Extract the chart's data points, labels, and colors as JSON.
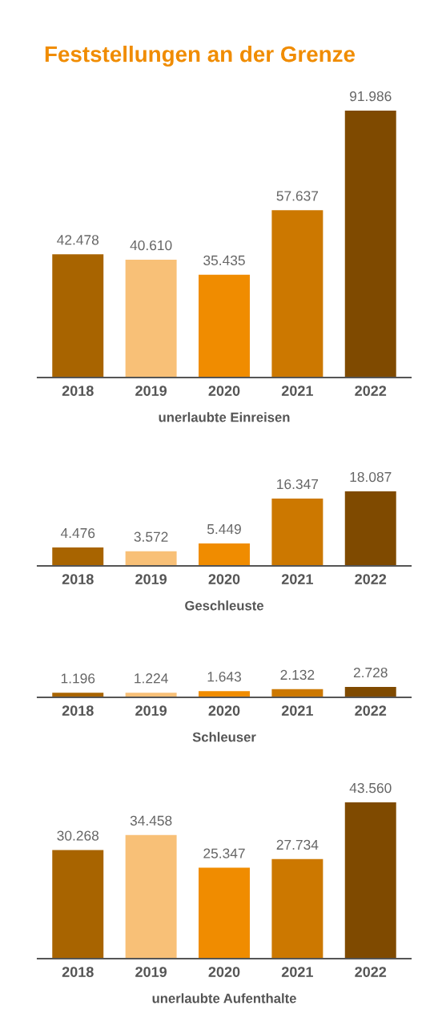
{
  "chart_data": [
    {
      "type": "bar",
      "title": "Feststellungen an der Grenze",
      "xlabel": "unerlaubte Einreisen",
      "categories": [
        "2018",
        "2019",
        "2020",
        "2021",
        "2022"
      ],
      "values": [
        42478,
        40610,
        35435,
        57637,
        91986
      ],
      "value_labels": [
        "42.478",
        "40.610",
        "35.435",
        "57.637",
        "91.986"
      ],
      "colors": [
        "#a86400",
        "#f8c077",
        "#f08c00",
        "#cc7800",
        "#7f4a00"
      ],
      "grid": false,
      "legend": false
    },
    {
      "type": "bar",
      "xlabel": "Geschleuste",
      "categories": [
        "2018",
        "2019",
        "2020",
        "2021",
        "2022"
      ],
      "values": [
        4476,
        3572,
        5449,
        16347,
        18087
      ],
      "value_labels": [
        "4.476",
        "3.572",
        "5.449",
        "16.347",
        "18.087"
      ],
      "colors": [
        "#a86400",
        "#f8c077",
        "#f08c00",
        "#cc7800",
        "#7f4a00"
      ],
      "grid": false,
      "legend": false
    },
    {
      "type": "bar",
      "xlabel": "Schleuser",
      "categories": [
        "2018",
        "2019",
        "2020",
        "2021",
        "2022"
      ],
      "values": [
        1196,
        1224,
        1643,
        2132,
        2728
      ],
      "value_labels": [
        "1.196",
        "1.224",
        "1.643",
        "2.132",
        "2.728"
      ],
      "colors": [
        "#a86400",
        "#f8c077",
        "#f08c00",
        "#cc7800",
        "#7f4a00"
      ],
      "grid": false,
      "legend": false
    },
    {
      "type": "bar",
      "xlabel": "unerlaubte Aufenthalte",
      "categories": [
        "2018",
        "2019",
        "2020",
        "2021",
        "2022"
      ],
      "values": [
        30268,
        34458,
        25347,
        27734,
        43560
      ],
      "value_labels": [
        "30.268",
        "34.458",
        "25.347",
        "27.734",
        "43.560"
      ],
      "colors": [
        "#a86400",
        "#f8c077",
        "#f08c00",
        "#cc7800",
        "#7f4a00"
      ],
      "grid": false,
      "legend": false
    }
  ]
}
